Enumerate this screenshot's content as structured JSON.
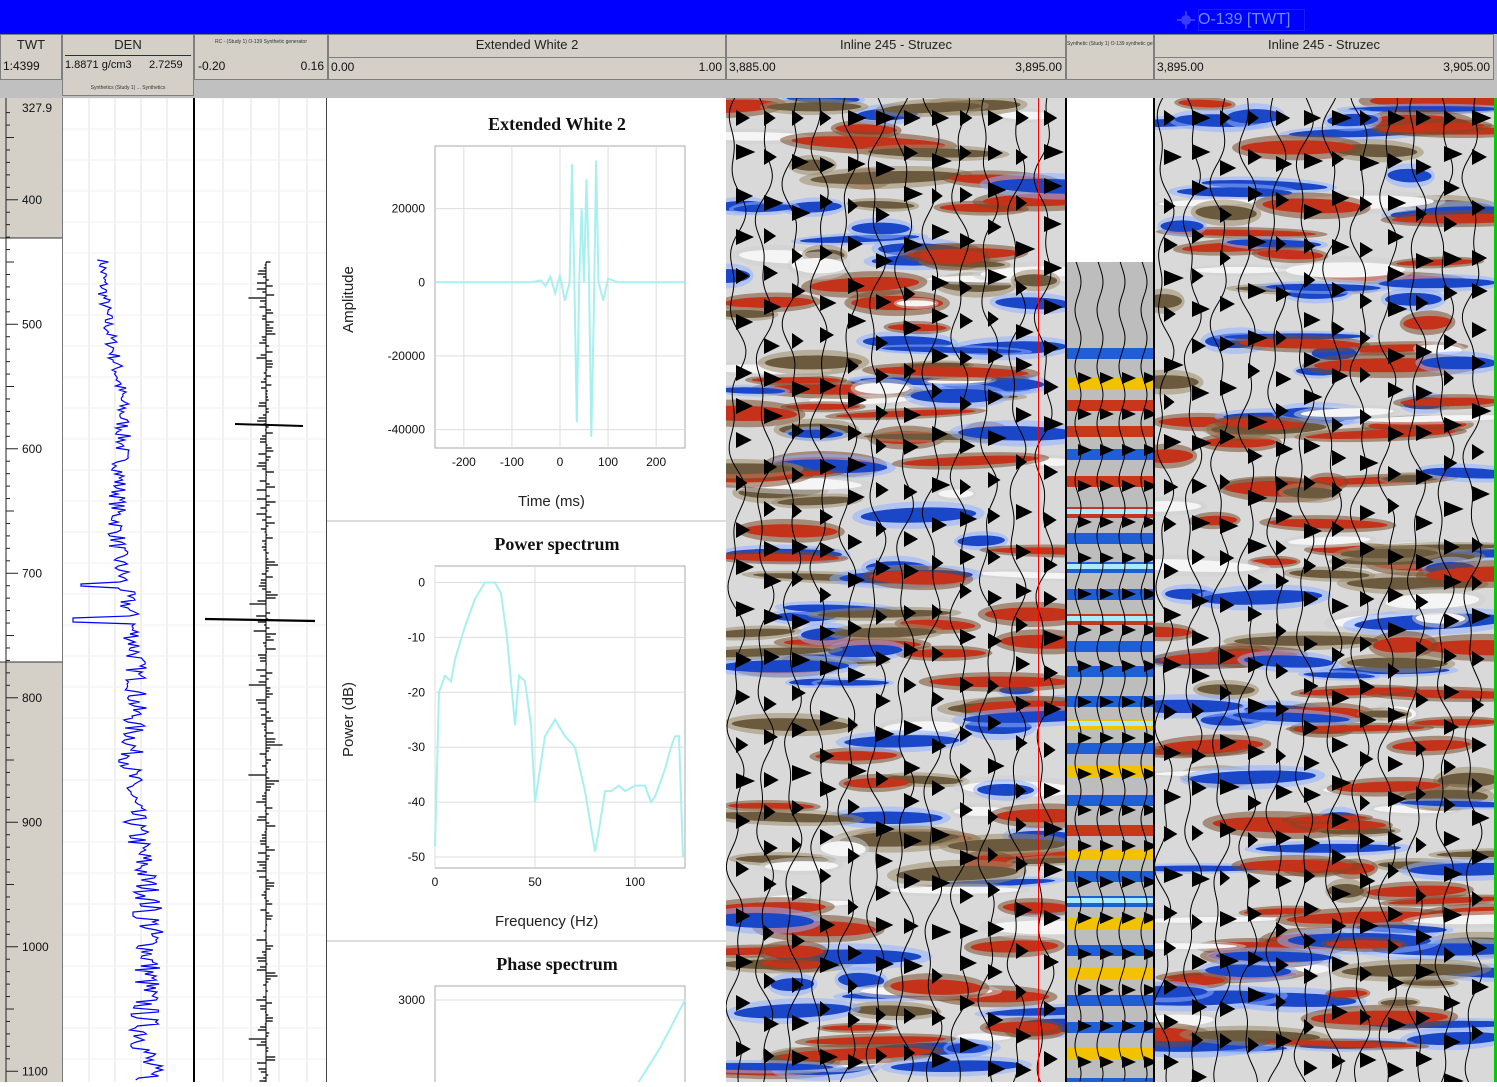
{
  "well_title": "O-139 [TWT]",
  "colors": {
    "title_bar": "#0000ff",
    "density_curve": "#0000ff",
    "wavelet_curve": "#a8f0f0",
    "marker_line": "#ff0000",
    "right_edge_line": "#00cc00"
  },
  "header": {
    "twt": {
      "title": "TWT",
      "scale": "1:4399"
    },
    "den": {
      "title": "DEN",
      "min": "1.8871 g/cm3",
      "max": "2.7259",
      "subtitle": "Synthetics (Study 1) ... Synthetics"
    },
    "rc": {
      "title": "RC - (Study 1) O-139 Synthetic generator",
      "min": "-0.20",
      "max": "0.16"
    },
    "wavelet": {
      "title": "Extended White 2",
      "min": "0.00",
      "max": "1.00"
    },
    "seismic1": {
      "title": "Inline 245 - Struzec",
      "min": "3,885.00",
      "max": "3,895.00"
    },
    "synthetic": {
      "title": "Synthetic (Study 1) O-139 synthetic generator"
    },
    "seismic2": {
      "title": "Inline 245 - Struzec",
      "min": "3,895.00",
      "max": "3,905.00"
    }
  },
  "twt_ticks": [
    "327.9",
    "400",
    "500",
    "600",
    "700",
    "800",
    "900",
    "1000",
    "1100"
  ],
  "charts": {
    "wavelet": {
      "title": "Extended White 2",
      "xlabel": "Time (ms)",
      "ylabel": "Amplitude",
      "xticks": [
        "-200",
        "-100",
        "0",
        "100",
        "200"
      ],
      "yticks": [
        "20000",
        "0",
        "-20000",
        "-40000"
      ]
    },
    "power": {
      "title": "Power spectrum",
      "xlabel": "Frequency (Hz)",
      "ylabel": "Power (dB)",
      "xticks": [
        "0",
        "50",
        "100"
      ],
      "yticks": [
        "0",
        "-10",
        "-20",
        "-30",
        "-40",
        "-50"
      ]
    },
    "phase": {
      "title": "Phase spectrum",
      "yticks": [
        "3000"
      ]
    }
  },
  "chart_data": [
    {
      "type": "line",
      "title": "Extended White 2",
      "xlabel": "Time (ms)",
      "ylabel": "Amplitude",
      "xlim": [
        -260,
        260
      ],
      "ylim": [
        -45000,
        37000
      ],
      "x": [
        -260,
        -60,
        -40,
        -30,
        -20,
        -10,
        0,
        10,
        20,
        25,
        30,
        35,
        40,
        45,
        50,
        55,
        60,
        65,
        70,
        75,
        80,
        90,
        100,
        120,
        260
      ],
      "y": [
        0,
        0,
        500,
        -1000,
        1500,
        -3000,
        2000,
        -5000,
        0,
        32000,
        0,
        -38000,
        0,
        20000,
        0,
        28000,
        5000,
        -42000,
        -10000,
        33000,
        0,
        -5000,
        1000,
        0,
        0
      ]
    },
    {
      "type": "line",
      "title": "Power spectrum",
      "xlabel": "Frequency (Hz)",
      "ylabel": "Power (dB)",
      "xlim": [
        0,
        125
      ],
      "ylim": [
        -52,
        3
      ],
      "x": [
        0,
        2,
        5,
        8,
        10,
        15,
        20,
        25,
        30,
        33,
        36,
        38,
        40,
        42,
        45,
        48,
        50,
        55,
        60,
        65,
        70,
        75,
        80,
        82,
        85,
        88,
        92,
        95,
        100,
        105,
        108,
        110,
        115,
        118,
        120,
        122,
        124
      ],
      "y": [
        -48,
        -20,
        -17,
        -18,
        -14,
        -8,
        -3,
        0,
        0,
        -2,
        -10,
        -18,
        -26,
        -17,
        -18,
        -26,
        -40,
        -28,
        -25,
        -28,
        -30,
        -38,
        -49,
        -45,
        -38,
        -38,
        -37,
        -38,
        -37,
        -37,
        -40,
        -39,
        -34,
        -30,
        -28,
        -28,
        -50
      ]
    },
    {
      "type": "line",
      "title": "Phase spectrum",
      "x": [
        0.78,
        0.9,
        1.0
      ],
      "y": [
        0,
        1500,
        3000
      ]
    }
  ]
}
